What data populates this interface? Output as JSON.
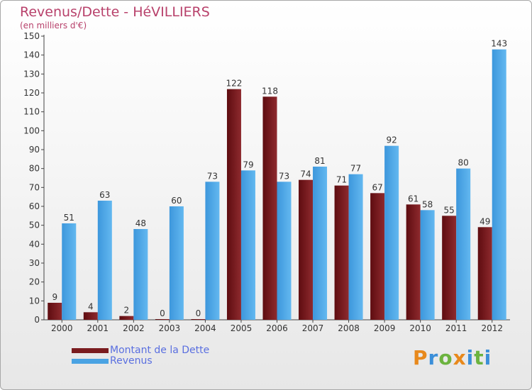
{
  "chart_data": {
    "type": "bar",
    "title": "Revenus/Dette - HéVILLIERS",
    "subtitle": "(en milliers d'€)",
    "categories": [
      "2000",
      "2001",
      "2002",
      "2003",
      "2004",
      "2005",
      "2006",
      "2007",
      "2008",
      "2009",
      "2010",
      "2011",
      "2012"
    ],
    "series": [
      {
        "name": "Montant de la Dette",
        "color": "#7a1c1f",
        "values": [
          9,
          4,
          2,
          0,
          0,
          122,
          118,
          74,
          71,
          67,
          61,
          55,
          49
        ]
      },
      {
        "name": "Revenus",
        "color": "#4aa3e3",
        "values": [
          51,
          63,
          48,
          60,
          73,
          79,
          73,
          81,
          77,
          92,
          58,
          80,
          143
        ]
      }
    ],
    "yticks": [
      0,
      10,
      20,
      30,
      40,
      50,
      60,
      70,
      80,
      90,
      100,
      110,
      120,
      130,
      140,
      150
    ],
    "ylim": [
      0,
      150
    ],
    "grid": false,
    "legend_position": "bottom-left"
  },
  "branding": {
    "logo_letters": [
      "P",
      "r",
      "o",
      "x",
      "i",
      "t",
      "i"
    ],
    "logo_colors": [
      "#e8891c",
      "#3b8fd9",
      "#6cb33f",
      "#e8891c",
      "#3b8fd9",
      "#6cb33f",
      "#3b8fd9"
    ]
  }
}
